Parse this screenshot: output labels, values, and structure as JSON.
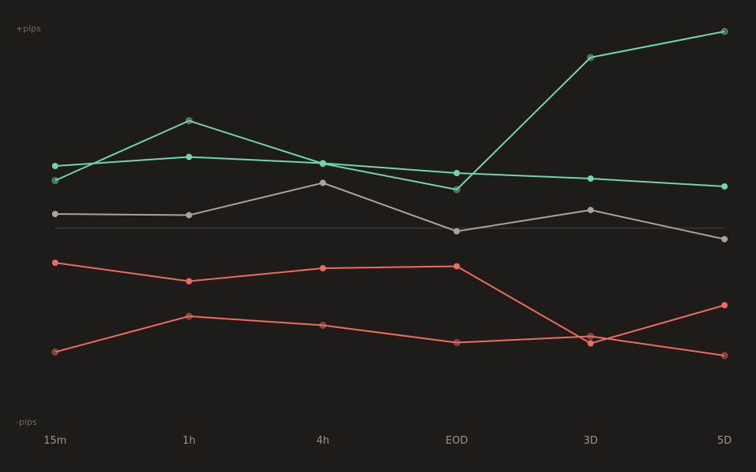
{
  "chart_data": {
    "type": "line",
    "categories": [
      "15m",
      "1h",
      "4h",
      "EOD",
      "3D",
      "5D"
    ],
    "ylabel_top": "+pips",
    "ylabel_bottom": "-pips",
    "ylim": [
      -100,
      100
    ],
    "zero_line": true,
    "grid": false,
    "series": [
      {
        "color": "#6fd6ad",
        "dim": true,
        "values": [
          24.2,
          54.6,
          32.8,
          19.6,
          86.8,
          100
        ]
      },
      {
        "color": "#6fd6ad",
        "dim": false,
        "values": [
          31.6,
          36.2,
          33.0,
          28.0,
          25.2,
          21.2
        ]
      },
      {
        "color": "#aba49c",
        "dim": false,
        "values": [
          7.2,
          6.6,
          23.0,
          -1.6,
          9.2,
          -5.6
        ]
      },
      {
        "color": "#ef6b60",
        "dim": false,
        "values": [
          -17.6,
          -27.0,
          -20.4,
          -19.4,
          -58.6,
          -39.2
        ]
      },
      {
        "color": "#ef6b60",
        "dim": true,
        "values": [
          -63.0,
          -44.8,
          -49.4,
          -58.2,
          -55.0,
          -64.8
        ]
      }
    ],
    "colors": {
      "background": "#1e1b18",
      "zero_line": "#3a3632"
    }
  }
}
